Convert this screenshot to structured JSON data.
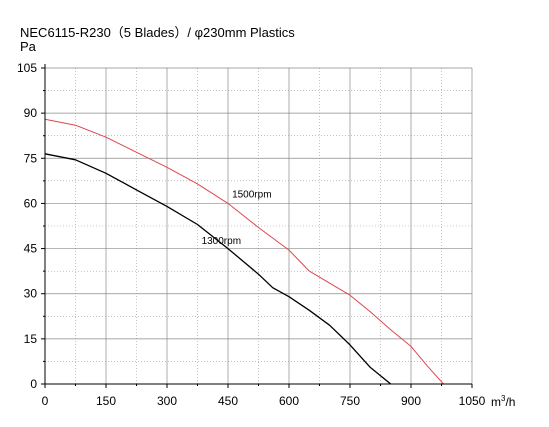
{
  "chart_data": {
    "type": "line",
    "title": "NEC6115-R230（5 Blades）/ φ230mm Plastics",
    "ylabel": "Pa",
    "xlabel_base": "m",
    "xlabel_sup": "3",
    "xlabel_tail": "/h",
    "xlim": [
      0,
      1050
    ],
    "ylim": [
      0,
      105
    ],
    "xticks": [
      0,
      150,
      300,
      450,
      600,
      750,
      900,
      1050
    ],
    "yticks": [
      0,
      15,
      30,
      45,
      60,
      75,
      90,
      105
    ],
    "grid": true,
    "series": [
      {
        "name": "1500rpm",
        "color": "#e0454f",
        "label_at": [
          460,
          62
        ],
        "x": [
          0,
          75,
          150,
          225,
          300,
          375,
          450,
          525,
          600,
          650,
          700,
          750,
          800,
          850,
          900,
          940,
          980
        ],
        "y": [
          88,
          86,
          82,
          77,
          72,
          66.5,
          60,
          52,
          44.5,
          37.5,
          33.5,
          29.5,
          24,
          18,
          12.5,
          6,
          0
        ]
      },
      {
        "name": "1300rpm",
        "color": "#000000",
        "label_at": [
          385,
          46.5
        ],
        "x": [
          0,
          75,
          150,
          225,
          300,
          375,
          450,
          525,
          560,
          600,
          650,
          700,
          750,
          800,
          850
        ],
        "y": [
          76.5,
          74.5,
          70,
          64.5,
          59,
          53,
          45,
          36.5,
          32,
          29,
          24.5,
          19.5,
          13,
          5.5,
          0
        ]
      }
    ]
  }
}
